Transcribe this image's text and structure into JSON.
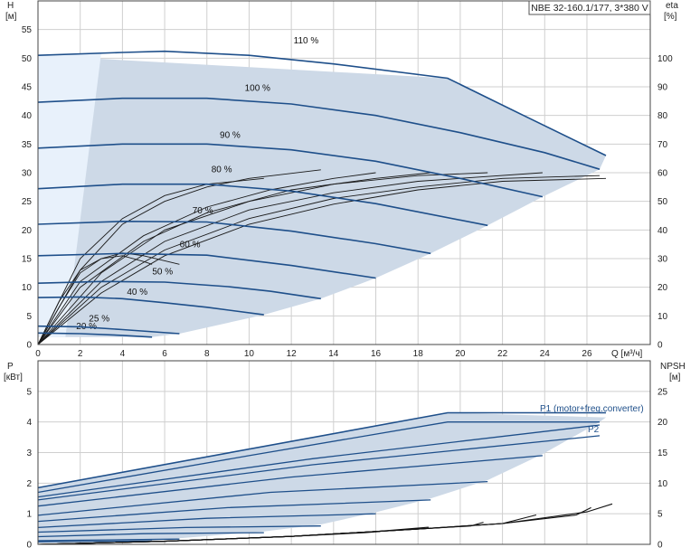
{
  "model_label": "NBE 32-160.1/177, 3*380 V",
  "chart_data": [
    {
      "name": "head-chart",
      "type": "line",
      "xlabel": "Q [м³/ч]",
      "ylabel": "H",
      "ylabel_unit": "[м]",
      "y2label": "eta",
      "y2label_unit": "[%]",
      "xlim": [
        0,
        29
      ],
      "ylim": [
        0,
        60
      ],
      "y2lim": [
        0,
        120
      ],
      "x_ticks": [
        0,
        2,
        4,
        6,
        8,
        10,
        12,
        14,
        16,
        18,
        20,
        22,
        24,
        26
      ],
      "y_ticks": [
        0,
        5,
        10,
        15,
        20,
        25,
        30,
        35,
        40,
        45,
        50,
        55
      ],
      "y2_ticks": [
        0,
        10,
        20,
        30,
        40,
        50,
        60,
        70,
        80,
        90,
        100
      ],
      "grid": true,
      "speed_curves": [
        {
          "label": "20 %",
          "x": [
            0,
            2,
            4,
            5.4
          ],
          "y": [
            2.0,
            1.9,
            1.6,
            1.3
          ]
        },
        {
          "label": "25 %",
          "x": [
            0,
            2,
            4,
            6.7
          ],
          "y": [
            3.2,
            3.1,
            2.6,
            1.9
          ]
        },
        {
          "label": "40 %",
          "x": [
            0,
            2,
            4,
            6,
            8,
            10.7
          ],
          "y": [
            8.2,
            8.3,
            8.0,
            7.3,
            6.5,
            5.2
          ]
        },
        {
          "label": "50 %",
          "x": [
            0,
            3,
            6,
            9,
            11,
            13.4
          ],
          "y": [
            10.7,
            11.0,
            10.9,
            10.1,
            9.3,
            8.0
          ]
        },
        {
          "label": "60 %",
          "x": [
            0,
            4,
            8,
            12,
            16
          ],
          "y": [
            15.5,
            15.9,
            15.6,
            13.8,
            11.6
          ]
        },
        {
          "label": "70 %",
          "x": [
            0,
            4,
            8,
            12,
            16,
            18.6
          ],
          "y": [
            21.0,
            21.5,
            21.4,
            19.8,
            17.6,
            15.9
          ]
        },
        {
          "label": "80 %",
          "x": [
            0,
            4,
            8,
            12,
            16,
            21.3
          ],
          "y": [
            27.2,
            28.0,
            28.0,
            26.8,
            24.6,
            20.8
          ]
        },
        {
          "label": "90 %",
          "x": [
            0,
            4,
            8,
            12,
            16,
            20,
            23.9
          ],
          "y": [
            34.3,
            35.0,
            35.0,
            34.0,
            32.0,
            29.0,
            25.8
          ]
        },
        {
          "label": "100 %",
          "x": [
            0,
            4,
            8,
            12,
            16,
            20,
            24,
            26.6
          ],
          "y": [
            42.3,
            43.0,
            43.0,
            42.0,
            40.0,
            37.0,
            33.5,
            30.6
          ]
        },
        {
          "label": "110 %",
          "x": [
            0,
            4,
            6,
            10,
            14,
            19.4,
            23,
            26.9
          ],
          "y": [
            50.5,
            51.0,
            51.2,
            50.5,
            49.0,
            46.5,
            40.0,
            33.0
          ]
        }
      ],
      "efficiency_curves": [
        {
          "x": [
            0,
            1,
            2,
            3,
            4,
            5,
            5.4
          ],
          "y": [
            0,
            15,
            26,
            30,
            31,
            29,
            28
          ]
        },
        {
          "x": [
            0,
            1,
            2,
            3,
            4,
            5,
            6.7
          ],
          "y": [
            0,
            13,
            25,
            30,
            32,
            31,
            28
          ]
        },
        {
          "x": [
            0,
            2,
            4,
            6,
            8,
            10.7
          ],
          "y": [
            0,
            30,
            44,
            52,
            56,
            58
          ]
        },
        {
          "x": [
            0,
            2,
            4,
            6,
            8,
            10,
            13.4
          ],
          "y": [
            0,
            26,
            42,
            50,
            55,
            58,
            61
          ]
        },
        {
          "x": [
            0,
            2,
            5,
            8,
            11,
            14,
            16
          ],
          "y": [
            0,
            22,
            38,
            48,
            54,
            58,
            60
          ]
        },
        {
          "x": [
            0,
            2,
            5,
            8,
            12,
            16,
            18.6
          ],
          "y": [
            0,
            20,
            36,
            46,
            54,
            58,
            60
          ]
        },
        {
          "x": [
            0,
            3,
            6,
            10,
            14,
            18,
            21.3
          ],
          "y": [
            0,
            25,
            40,
            50,
            56,
            59,
            60
          ]
        },
        {
          "x": [
            0,
            3,
            6,
            10,
            14,
            18,
            23.9
          ],
          "y": [
            0,
            22,
            36,
            47,
            53,
            57,
            60
          ]
        },
        {
          "x": [
            0,
            3,
            6,
            10,
            14,
            18,
            22,
            26.6
          ],
          "y": [
            0,
            20,
            33,
            44,
            51,
            55,
            58,
            59
          ]
        },
        {
          "x": [
            0,
            3,
            6,
            10,
            14,
            18,
            22,
            26.9
          ],
          "y": [
            0,
            18,
            31,
            42,
            49,
            54,
            57,
            58
          ]
        }
      ],
      "operating_area": {
        "x": [
          0,
          19.4,
          26.9,
          26.6,
          23.9,
          21.3,
          18.6,
          16,
          13.4,
          10.7,
          6.7,
          5.4,
          0
        ],
        "y": [
          50.5,
          46.5,
          33.0,
          30.6,
          25.8,
          20.8,
          15.9,
          11.6,
          8.0,
          5.2,
          1.9,
          1.3,
          1.3
        ]
      }
    },
    {
      "name": "power-chart",
      "type": "line",
      "ylabel": "P",
      "ylabel_unit": "[кВт]",
      "y2label": "NPSH",
      "y2label_unit": "[м]",
      "xlim": [
        0,
        29
      ],
      "ylim": [
        0,
        6
      ],
      "y2lim": [
        0,
        30
      ],
      "y_ticks": [
        0,
        1,
        2,
        3,
        4,
        5
      ],
      "y2_ticks": [
        0,
        5,
        10,
        15,
        20,
        25
      ],
      "grid": true,
      "p1_label": "P1 (motor+freq.converter)",
      "p2_label": "P2",
      "p1_limit": {
        "x": [
          0,
          19.4,
          26.9
        ],
        "y": [
          1.85,
          4.3,
          4.3
        ]
      },
      "power_curves": [
        {
          "x": [
            0,
            10,
            19.4,
            26.6
          ],
          "y": [
            1.7,
            2.9,
            4.0,
            4.0
          ]
        },
        {
          "x": [
            0,
            13,
            26.6
          ],
          "y": [
            1.55,
            2.8,
            3.9
          ]
        },
        {
          "x": [
            0,
            13,
            26.6
          ],
          "y": [
            1.45,
            2.6,
            3.55
          ]
        },
        {
          "x": [
            0,
            12,
            23.9
          ],
          "y": [
            1.25,
            2.2,
            2.9
          ]
        },
        {
          "x": [
            0,
            11,
            21.3
          ],
          "y": [
            0.95,
            1.7,
            2.05
          ]
        },
        {
          "x": [
            0,
            9,
            18.6
          ],
          "y": [
            0.75,
            1.2,
            1.45
          ]
        },
        {
          "x": [
            0,
            8,
            16
          ],
          "y": [
            0.55,
            0.85,
            1.0
          ]
        },
        {
          "x": [
            0,
            7,
            13.4
          ],
          "y": [
            0.4,
            0.55,
            0.6
          ]
        },
        {
          "x": [
            0,
            5,
            10.7
          ],
          "y": [
            0.25,
            0.35,
            0.38
          ]
        },
        {
          "x": [
            0,
            4,
            6.7
          ],
          "y": [
            0.12,
            0.15,
            0.17
          ]
        },
        {
          "x": [
            0,
            3,
            5.4
          ],
          "y": [
            0.08,
            0.1,
            0.11
          ]
        }
      ],
      "npsh_curves": [
        {
          "x": [
            0,
            6,
            12,
            18,
            22,
            26,
            27.2
          ],
          "y": [
            0,
            0.5,
            1.3,
            2.5,
            3.4,
            5.3,
            6.6
          ]
        },
        {
          "x": [
            0,
            6,
            12,
            18,
            22,
            25.5,
            26.2
          ],
          "y": [
            0,
            0.5,
            1.3,
            2.5,
            3.4,
            4.8,
            6.0
          ]
        },
        {
          "x": [
            0,
            6,
            12,
            18,
            22,
            23.6
          ],
          "y": [
            0,
            0.5,
            1.3,
            2.5,
            3.4,
            4.8
          ]
        },
        {
          "x": [
            0,
            6,
            12,
            18,
            20.5,
            21.1
          ],
          "y": [
            0,
            0.5,
            1.3,
            2.5,
            3.0,
            3.6
          ]
        },
        {
          "x": [
            0,
            6,
            12,
            16,
            18.5
          ],
          "y": [
            0,
            0.5,
            1.3,
            2.1,
            2.8
          ]
        },
        {
          "x": [
            0,
            6,
            12,
            15.5,
            16.2
          ],
          "y": [
            0,
            0.5,
            1.3,
            1.9,
            2.1
          ]
        }
      ]
    }
  ]
}
